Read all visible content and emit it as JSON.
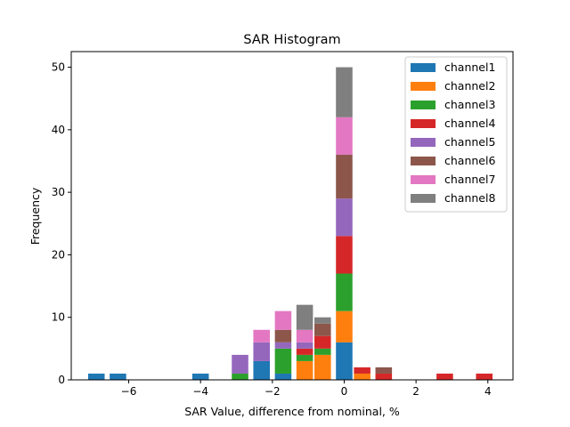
{
  "chart_data": {
    "type": "bar",
    "stacked": true,
    "title": "SAR Histogram",
    "xlabel": "SAR Value, difference from nominal, %",
    "ylabel": "Frequency",
    "xlim": [
      -7.6,
      4.7
    ],
    "ylim": [
      0,
      52.5
    ],
    "bar_width": 0.46,
    "xticks": [
      -6,
      -4,
      -2,
      0,
      2,
      4
    ],
    "xtick_labels": [
      "−6",
      "−4",
      "−2",
      "0",
      "2",
      "4"
    ],
    "yticks": [
      0,
      10,
      20,
      30,
      40,
      50
    ],
    "ytick_labels": [
      "0",
      "10",
      "20",
      "30",
      "40",
      "50"
    ],
    "bins": [
      -6.9,
      -6.3,
      -4.0,
      -2.9,
      -2.3,
      -1.7,
      -1.1,
      -0.6,
      0.0,
      0.5,
      1.1,
      2.8,
      3.9
    ],
    "legend_position": "top-right",
    "series": [
      {
        "name": "channel1",
        "color": "#1f77b4",
        "values": [
          1,
          1,
          1,
          0,
          3,
          1,
          0,
          0,
          6,
          0,
          0,
          0,
          0
        ]
      },
      {
        "name": "channel2",
        "color": "#ff7f0e",
        "values": [
          0,
          0,
          0,
          0,
          0,
          0,
          3,
          4,
          5,
          1,
          0,
          0,
          0
        ]
      },
      {
        "name": "channel3",
        "color": "#2ca02c",
        "values": [
          0,
          0,
          0,
          1,
          0,
          4,
          1,
          1,
          6,
          0,
          0,
          0,
          0
        ]
      },
      {
        "name": "channel4",
        "color": "#d62728",
        "values": [
          0,
          0,
          0,
          0,
          0,
          0,
          1,
          2,
          6,
          1,
          1,
          1,
          1
        ]
      },
      {
        "name": "channel5",
        "color": "#9467bd",
        "values": [
          0,
          0,
          0,
          3,
          3,
          1,
          1,
          0,
          6,
          0,
          0,
          0,
          0
        ]
      },
      {
        "name": "channel6",
        "color": "#8c564b",
        "values": [
          0,
          0,
          0,
          0,
          0,
          2,
          0,
          2,
          7,
          0,
          1,
          0,
          0
        ]
      },
      {
        "name": "channel7",
        "color": "#e377c2",
        "values": [
          0,
          0,
          0,
          0,
          2,
          3,
          2,
          0,
          6,
          0,
          0,
          0,
          0
        ]
      },
      {
        "name": "channel8",
        "color": "#7f7f7f",
        "values": [
          0,
          0,
          0,
          0,
          0,
          0,
          4,
          1,
          8,
          0,
          0,
          0,
          0
        ]
      }
    ]
  }
}
